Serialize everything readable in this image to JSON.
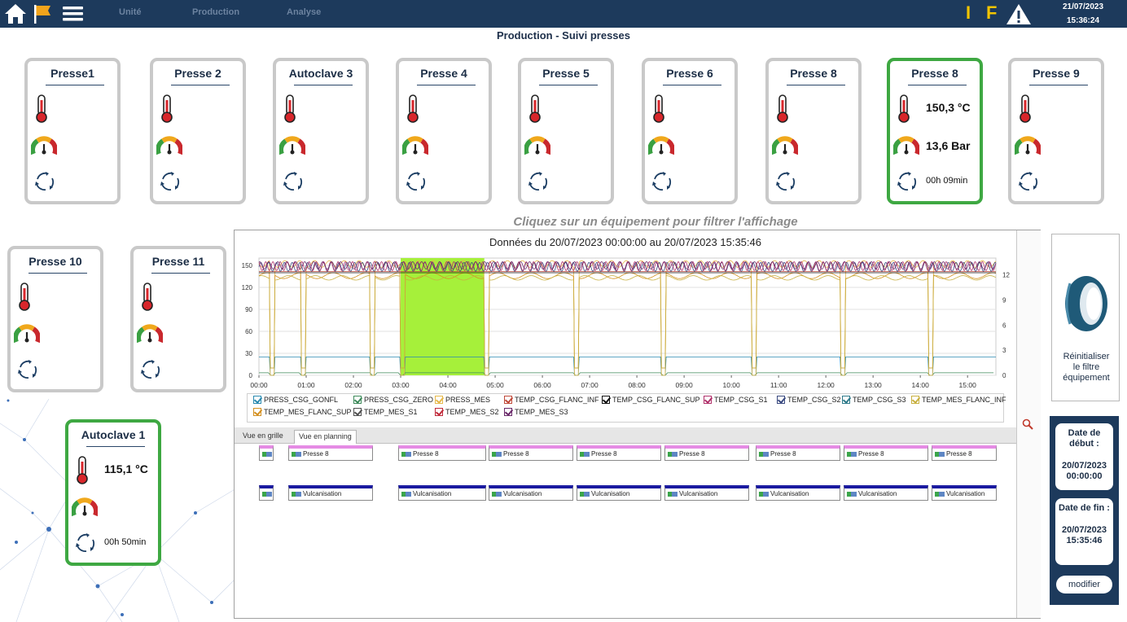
{
  "topbar": {
    "menu": [
      "Unité",
      "Production",
      "Analyse"
    ],
    "indicator_i": "I",
    "indicator_f": "F",
    "date": "21/07/2023",
    "time": "15:36:24"
  },
  "page_title": "Production - Suivi presses",
  "filter_hint": "Cliquez sur un équipement pour filtrer l'affichage",
  "cards": [
    {
      "title": "Presse1",
      "active": false,
      "temp": "",
      "pressure": "",
      "duration": ""
    },
    {
      "title": "Presse 2",
      "active": false,
      "temp": "",
      "pressure": "",
      "duration": ""
    },
    {
      "title": "Autoclave 3",
      "active": false,
      "temp": "",
      "pressure": "",
      "duration": ""
    },
    {
      "title": "Presse 4",
      "active": false,
      "temp": "",
      "pressure": "",
      "duration": ""
    },
    {
      "title": "Presse 5",
      "active": false,
      "temp": "",
      "pressure": "",
      "duration": ""
    },
    {
      "title": "Presse 6",
      "active": false,
      "temp": "",
      "pressure": "",
      "duration": ""
    },
    {
      "title": "Presse 8",
      "active": false,
      "temp": "",
      "pressure": "",
      "duration": ""
    },
    {
      "title": "Presse 8",
      "active": true,
      "temp": "150,3 °C",
      "pressure": "13,6 Bar",
      "duration": "00h 09min"
    },
    {
      "title": "Presse 9",
      "active": false,
      "temp": "",
      "pressure": "",
      "duration": ""
    },
    {
      "title": "Presse 10",
      "active": false,
      "temp": "",
      "pressure": "",
      "duration": ""
    },
    {
      "title": "Presse 11",
      "active": false,
      "temp": "",
      "pressure": "",
      "duration": ""
    },
    {
      "title": "Autoclave 1",
      "active": true,
      "temp": "115,1 °C",
      "pressure": "",
      "duration": "00h 50min"
    }
  ],
  "chart_data": {
    "type": "line",
    "title": "Données du 20/07/2023 00:00:00 au 20/07/2023 15:35:46",
    "x_ticks": [
      "00:00",
      "01:00",
      "02:00",
      "03:00",
      "04:00",
      "05:00",
      "06:00",
      "07:00",
      "08:00",
      "09:00",
      "10:00",
      "11:00",
      "12:00",
      "13:00",
      "14:00",
      "15:00"
    ],
    "y_left_ticks": [
      0,
      30,
      60,
      90,
      120,
      150
    ],
    "y_left_lim": [
      0,
      160
    ],
    "y_right_ticks": [
      0,
      3,
      6,
      9,
      12
    ],
    "y_right_lim": [
      0,
      14
    ],
    "highlight_range_hours": [
      3.0,
      4.77
    ],
    "highlight_color": "#a6f03a",
    "cycle_breaks_hours": [
      0.27,
      0.93,
      2.4,
      3.03,
      4.8,
      6.7,
      8.55,
      10.47,
      12.35,
      14.2
    ],
    "series": [
      {
        "name": "PRESS_CSG_GONFL",
        "color": "#2a8ab0"
      },
      {
        "name": "PRESS_CSG_ZERO",
        "color": "#3d8a5a"
      },
      {
        "name": "PRESS_MES",
        "color": "#e6b84a"
      },
      {
        "name": "TEMP_CSG_FLANC_INF",
        "color": "#c04a3a"
      },
      {
        "name": "TEMP_CSG_FLANC_SUP",
        "color": "#111111"
      },
      {
        "name": "TEMP_CSG_S1",
        "color": "#b0306a"
      },
      {
        "name": "TEMP_CSG_S2",
        "color": "#3a4a80"
      },
      {
        "name": "TEMP_CSG_S3",
        "color": "#2e7a8a"
      },
      {
        "name": "TEMP_MES_FLANC_INF",
        "color": "#c8b040"
      },
      {
        "name": "TEMP_MES_FLANC_SUP",
        "color": "#d49020"
      },
      {
        "name": "TEMP_MES_S1",
        "color": "#505050"
      },
      {
        "name": "TEMP_MES_S2",
        "color": "#c02a3a"
      },
      {
        "name": "TEMP_MES_S3",
        "color": "#6a2a6a"
      }
    ]
  },
  "tabs": [
    "Vue en grille",
    "Vue en planning"
  ],
  "planning": {
    "row1": [
      {
        "label": ""
      },
      {
        "label": "Presse 8"
      },
      {
        "label": "Presse 8"
      },
      {
        "label": "Presse 8"
      },
      {
        "label": "Presse 8"
      },
      {
        "label": "Presse 8"
      },
      {
        "label": "Presse 8"
      },
      {
        "label": "Presse 8"
      },
      {
        "label": "Presse 8"
      }
    ],
    "row2": [
      {
        "label": ""
      },
      {
        "label": "Vulcanisation"
      },
      {
        "label": "Vulcanisation"
      },
      {
        "label": "Vulcanisation"
      },
      {
        "label": "Vulcanisation"
      },
      {
        "label": "Vulcanisation"
      },
      {
        "label": "Vulcanisation"
      },
      {
        "label": "Vulcanisation"
      },
      {
        "label": "Vulcanisation"
      }
    ]
  },
  "reset": {
    "label_line1": "Réinitialiser",
    "label_line2": "le filtre",
    "label_line3": "équipement"
  },
  "date_start": {
    "label": "Date de début :",
    "date": "20/07/2023",
    "time": "00:00:00"
  },
  "date_end": {
    "label": "Date de fin :",
    "date": "20/07/2023",
    "time": "15:35:46"
  },
  "modify_label": "modifier"
}
